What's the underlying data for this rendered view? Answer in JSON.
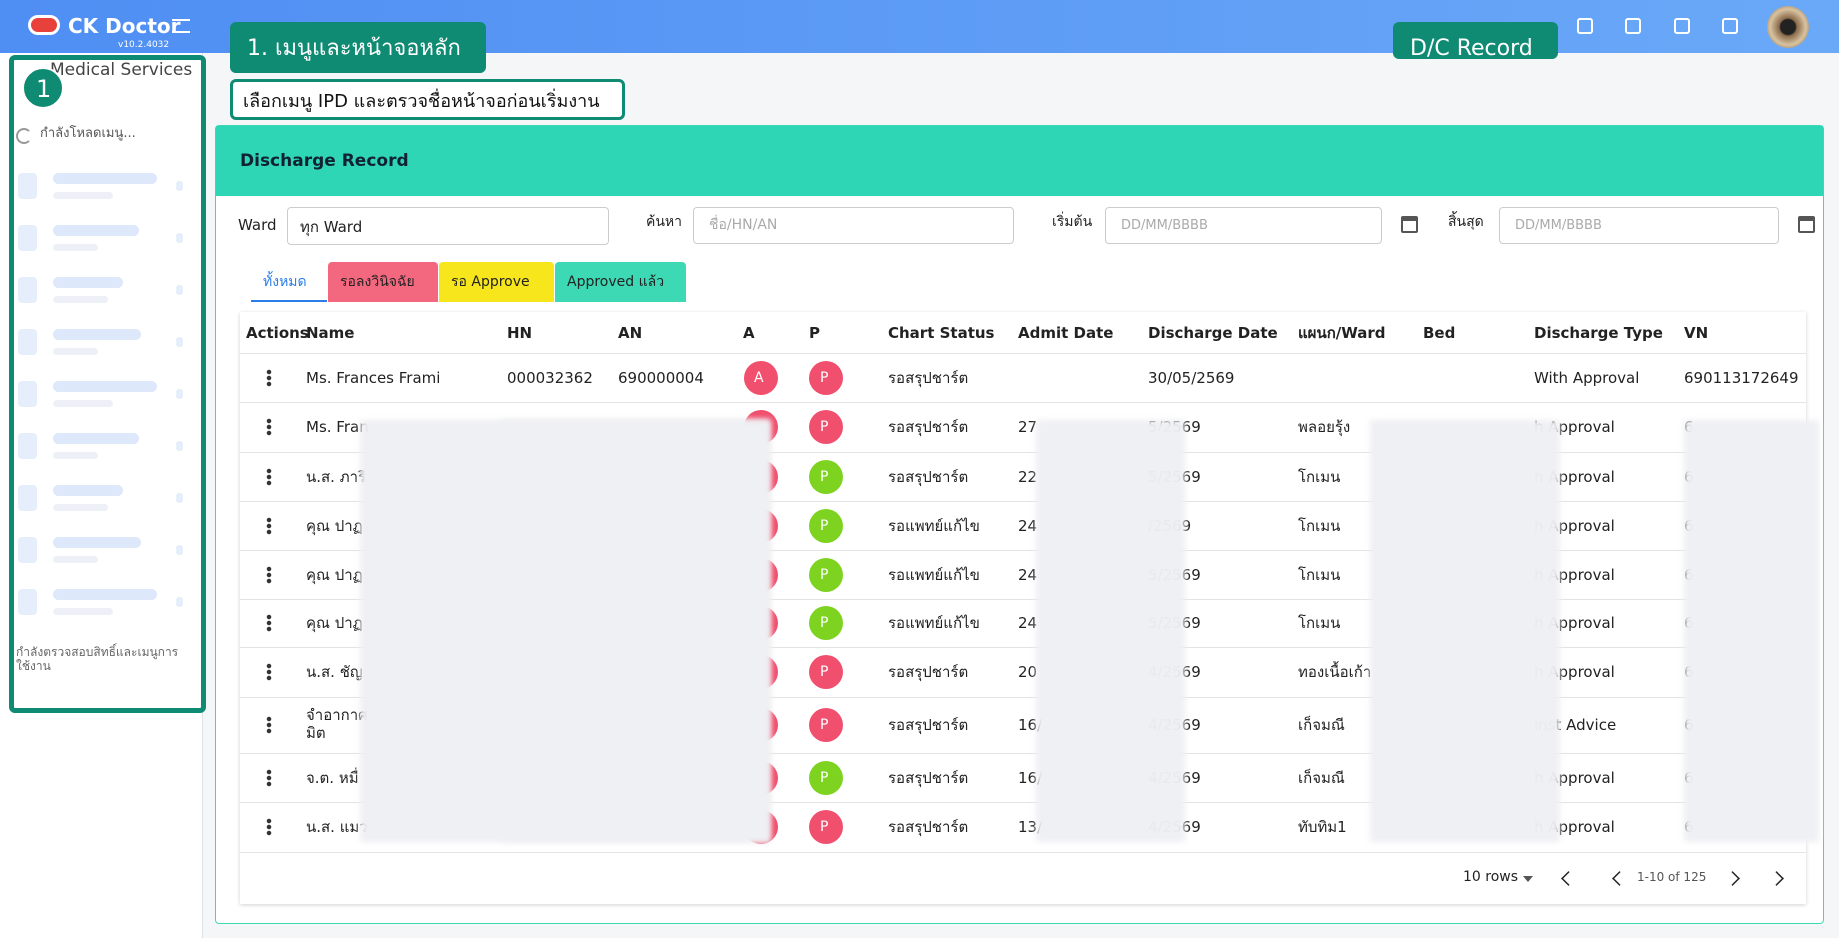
{
  "header": {
    "logo": "CK Doctor",
    "version": "v10.2.4032"
  },
  "annotations": {
    "main": "1. เมนูและหน้าจอหลัก",
    "dc": "D/C Record",
    "hint": "เลือกเมนู IPD และตรวจชื่อหน้าจอก่อนเริ่มงาน",
    "badge": "1"
  },
  "sidebar": {
    "title": "Medical Services",
    "loading": "กำลังโหลดเมนู...",
    "footer": "กำลังตรวจสอบสิทธิ์และเมนูการใช้งาน"
  },
  "page": {
    "title": "Discharge Record",
    "filters": {
      "ward_label": "Ward",
      "ward_value": "ทุก Ward",
      "search_label": "ค้นหา",
      "search_placeholder": "ชื่อ/HN/AN",
      "start_label": "เริ่มต้น",
      "start_placeholder": "DD/MM/BBBB",
      "end_label": "สิ้นสุด",
      "end_placeholder": "DD/MM/BBBB"
    },
    "tabs": [
      {
        "label": "ทั้งหมด",
        "color": "#ffffff"
      },
      {
        "label": "รอลงวินิจฉัย",
        "color": "#f4687f"
      },
      {
        "label": "รอ Approve",
        "color": "#f7e61c"
      },
      {
        "label": "Approved แล้ว",
        "color": "#3dd9b4"
      }
    ]
  },
  "table": {
    "columns": {
      "actions": "Actions",
      "name": "Name",
      "hn": "HN",
      "an": "AN",
      "a": "A",
      "p": "P",
      "status": "Chart Status",
      "admit": "Admit Date",
      "discharge": "Discharge Date",
      "ward": "แผนก/Ward",
      "bed": "Bed",
      "type": "Discharge Type",
      "vn": "VN"
    },
    "rows": [
      {
        "name": "Ms. Frances Frami",
        "hn": "000032362",
        "an": "690000004",
        "a": "A",
        "p": "P",
        "p_color": "#f0506e",
        "status": "รอสรุปชาร์ต",
        "discharge": "30/05/2569",
        "type": "With Approval",
        "vn": "690113172649"
      },
      {
        "name": "Ms. Fran",
        "p": "P",
        "p_color": "#f0506e",
        "status": "รอสรุปชาร์ต",
        "admit": "27",
        "discharge": "5/2569",
        "ward": "พลอยรุ้ง",
        "type": "h Approval",
        "vn": "6"
      },
      {
        "name": "น.ส. ภาริ",
        "p": "P",
        "p_color": "#7ed321",
        "status": "รอสรุปชาร์ต",
        "admit": "22",
        "discharge": "5/2569",
        "ward": "โกเมน",
        "type": "h Approval",
        "vn": "6"
      },
      {
        "name": "คุณ ปาฏ",
        "p": "P",
        "p_color": "#7ed321",
        "status": "รอแพทย์แก้ไข",
        "admit": "24",
        "discharge": "/2569",
        "ward": "โกเมน",
        "type": "h Approval",
        "vn": "6"
      },
      {
        "name": "คุณ ปาฏ",
        "p": "P",
        "p_color": "#7ed321",
        "status": "รอแพทย์แก้ไข",
        "admit": "24",
        "discharge": "5/2569",
        "ward": "โกเมน",
        "type": "h Approval",
        "vn": "6"
      },
      {
        "name": "คุณ ปาฏ",
        "p": "P",
        "p_color": "#7ed321",
        "status": "รอแพทย์แก้ไข",
        "admit": "24",
        "discharge": "5/2569",
        "ward": "โกเมน",
        "type": "h Approval",
        "vn": "6"
      },
      {
        "name": "น.ส. ชัญ",
        "p": "P",
        "p_color": "#f0506e",
        "status": "รอสรุปชาร์ต",
        "admit": "20",
        "discharge": "4/2569",
        "ward": "ทองเนื้อเก้า",
        "type": "h Approval",
        "vn": "6"
      },
      {
        "name": "จำอากาศ\nมิต",
        "p": "P",
        "p_color": "#f0506e",
        "status": "รอสรุปชาร์ต",
        "admit": "16/",
        "discharge": "4/2569",
        "ward": "เก็จมณี",
        "type": "inst Advice",
        "vn": "6"
      },
      {
        "name": "จ.ต. หมื่",
        "p": "P",
        "p_color": "#7ed321",
        "status": "รอสรุปชาร์ต",
        "admit": "16/",
        "discharge": "4/2569",
        "ward": "เก็จมณี",
        "type": "h Approval",
        "vn": "6"
      },
      {
        "name": "น.ส. แมว",
        "p": "P",
        "p_color": "#f0506e",
        "status": "รอสรุปชาร์ต",
        "admit": "13/",
        "discharge": "4/2569",
        "ward": "ทับทิม1",
        "type": "h Approval",
        "vn": "6"
      }
    ]
  },
  "pagination": {
    "rows": "10 rows",
    "range": "1-10 of 125"
  }
}
